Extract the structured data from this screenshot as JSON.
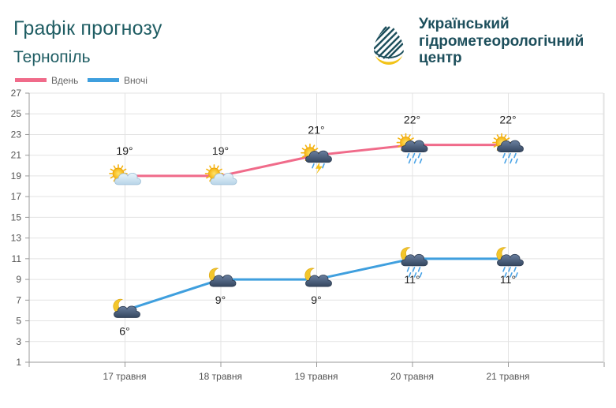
{
  "header": {
    "title": "Графік прогнозу",
    "city": "Тернопіль"
  },
  "organization": {
    "line1": "Український",
    "line2": "гідрометеорологічний",
    "line3": "центр",
    "logo_icon": "water-drop-logo-icon"
  },
  "colors": {
    "day": "#f06b8a",
    "night": "#3f9fde",
    "grid": "#e3e3e3",
    "brand": "#1d4f5c",
    "logo_yellow": "#f2c318"
  },
  "chart_data": {
    "type": "line",
    "categories": [
      "17 травня",
      "18 травня",
      "19 травня",
      "20 травня",
      "21 травня"
    ],
    "ylim": [
      1,
      27
    ],
    "yticks": [
      1,
      3,
      5,
      7,
      9,
      11,
      13,
      15,
      17,
      19,
      21,
      23,
      25,
      27
    ],
    "grid": true,
    "legend": "top-left",
    "series": [
      {
        "name": "Вдень",
        "color": "#f06b8a",
        "values": [
          19,
          19,
          21,
          22,
          22
        ],
        "labels": [
          "19°",
          "19°",
          "21°",
          "22°",
          "22°"
        ],
        "icons": [
          "sun-cloud-icon",
          "sun-cloud-icon",
          "sun-thunderstorm-icon",
          "sun-rain-icon",
          "sun-rain-icon"
        ]
      },
      {
        "name": "Вночі",
        "color": "#3f9fde",
        "values": [
          6,
          9,
          9,
          11,
          11
        ],
        "labels": [
          "6°",
          "9°",
          "9°",
          "11°",
          "11°"
        ],
        "icons": [
          "moon-cloud-icon",
          "moon-cloud-icon",
          "moon-cloud-icon",
          "moon-rain-icon",
          "moon-rain-icon"
        ]
      }
    ]
  }
}
